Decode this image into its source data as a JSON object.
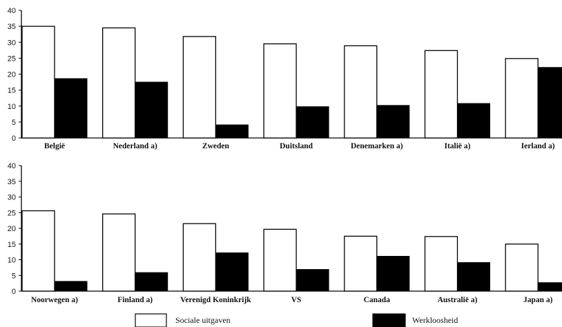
{
  "chart_data": [
    {
      "type": "bar",
      "categories": [
        "België",
        "Nederland a)",
        "Zweden",
        "Duitsland",
        "Denemarken a)",
        "Italië a)",
        "Ierland a)"
      ],
      "series": [
        {
          "name": "Sociale uitgaven",
          "values": [
            35,
            34.5,
            31.8,
            29.5,
            28.9,
            27.4,
            24.9
          ]
        },
        {
          "name": "Werkloosheid",
          "values": [
            18.6,
            17.5,
            4.1,
            9.8,
            10.2,
            10.8,
            22.1
          ]
        }
      ],
      "yticks": [
        0,
        5,
        10,
        15,
        20,
        25,
        30,
        35,
        40
      ],
      "ylim": [
        0,
        40
      ]
    },
    {
      "type": "bar",
      "categories": [
        "Noorwegen a)",
        "Finland a)",
        "Verenigd Koninkrijk",
        "VS",
        "Canada",
        "Australië a)",
        "Japan a)"
      ],
      "series": [
        {
          "name": "Sociale uitgaven",
          "values": [
            25.6,
            24.6,
            21.5,
            19.7,
            17.5,
            17.4,
            15.0
          ]
        },
        {
          "name": "Werkloosheid",
          "values": [
            3.1,
            5.9,
            12.2,
            6.9,
            11.1,
            9.1,
            2.7
          ]
        }
      ],
      "yticks": [
        0,
        5,
        10,
        15,
        20,
        25,
        30,
        35,
        40
      ],
      "ylim": [
        0,
        40
      ]
    }
  ],
  "legend": [
    {
      "label": "Sociale uitgaven",
      "color": "#ffffff"
    },
    {
      "label": "Werkloosheid",
      "color": "#000000"
    }
  ],
  "colors": {
    "sociale": "#ffffff",
    "werkloosheid": "#000000"
  }
}
